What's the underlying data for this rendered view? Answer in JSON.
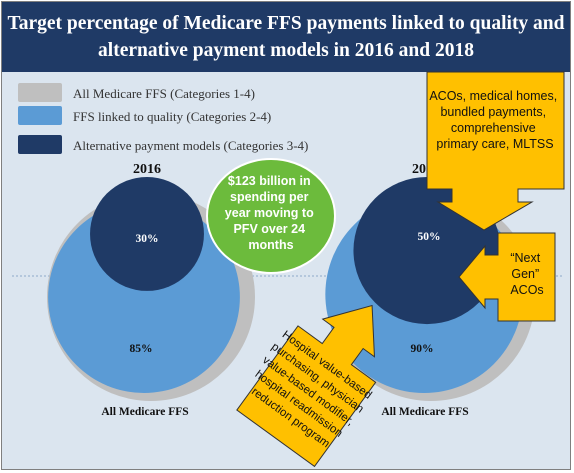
{
  "chart_data": {
    "type": "bubble",
    "title_line1": "Target percentage of Medicare FFS payments linked to quality and",
    "title_line2": "alternative payment models in 2016 and 2018",
    "legend": [
      {
        "label": "All Medicare FFS (Categories 1-4)",
        "color": "#bfbfbf"
      },
      {
        "label": "FFS linked to quality (Categories 2-4)",
        "color": "#5b9bd5"
      },
      {
        "label": "Alternative payment models (Categories 3-4)",
        "color": "#1f3a66"
      }
    ],
    "groups": [
      {
        "year": "2016",
        "base_label": "All Medicare FFS",
        "all_ffs": 100,
        "ffs_quality": 85,
        "apm": 30,
        "ffs_quality_label": "85%",
        "apm_label": "30%"
      },
      {
        "year": "2018",
        "base_label": "All Medicare FFS",
        "all_ffs": 100,
        "ffs_quality": 90,
        "apm": 50,
        "ffs_quality_label": "90%",
        "apm_label": "50%"
      }
    ]
  },
  "callouts": {
    "spending": [
      "$123 billion in",
      "spending per",
      "year moving to",
      "PFV over 24",
      "months"
    ],
    "aco": [
      "ACOs, medical homes,",
      "bundled payments,",
      "comprehensive",
      "primary care, MLTSS"
    ],
    "next_gen": [
      "“Next",
      "Gen”",
      "ACOs"
    ],
    "hospital": [
      "Hospital value-based",
      "purchasing, physician",
      "value-based modifier,",
      "hospital readmission",
      "reduction program"
    ]
  },
  "colors": {
    "header": "#1f3a66",
    "background": "#dbe5ef",
    "all_ffs": "#bfbfbf",
    "ffs_quality": "#5b9bd5",
    "apm": "#1f3a66",
    "callout": "#ffc000",
    "green_bubble": "#6cbb3c"
  }
}
